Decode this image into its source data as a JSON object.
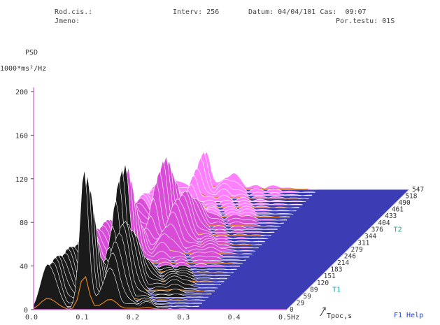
{
  "header": {
    "rod_cis": "Rod.cis.:",
    "jmeno": "Jmeno:",
    "interv": "Interv: 256",
    "datum_cas": "Datum: 04/04/101 Cas:  09:07",
    "por_testu": "Por.testu: 01S"
  },
  "footer": {
    "help": "F1 Help"
  },
  "chart_data": {
    "type": "3d-waterfall",
    "ylabel_line1": "PSD",
    "ylabel_line2": "1000*ms²/Hz",
    "xaxis_unit": "Hz",
    "zaxis_label": "Tpoc,s",
    "y_ticks": [
      0,
      40,
      80,
      120,
      160,
      200
    ],
    "ylim": [
      0,
      200
    ],
    "x_ticks": [
      "0.0",
      "0.1",
      "0.2",
      "0.3",
      "0.4",
      "0.5Hz"
    ],
    "xlim": [
      0,
      0.5
    ],
    "z_ticks": [
      "0",
      "29",
      "59",
      "89",
      "120",
      "151",
      "183",
      "214",
      "246",
      "279",
      "311",
      "344",
      "376",
      "404",
      "433",
      "461",
      "490",
      "518",
      "547"
    ],
    "markers": [
      {
        "label": "T1",
        "index": 3
      },
      {
        "label": "T2",
        "index": 12
      }
    ],
    "dominant_peak": {
      "frequency_hz": 0.1,
      "psd": 127
    },
    "colors": {
      "floor": "#3c3cb4",
      "axis": "#e070e0",
      "near_surface": "#1a1a1a",
      "mid_surface": "#d84cd8",
      "far_surface": "#ff80ff",
      "marker": "#20a0a0",
      "orange_trace": "#e08020",
      "help": "#2040c0"
    }
  }
}
